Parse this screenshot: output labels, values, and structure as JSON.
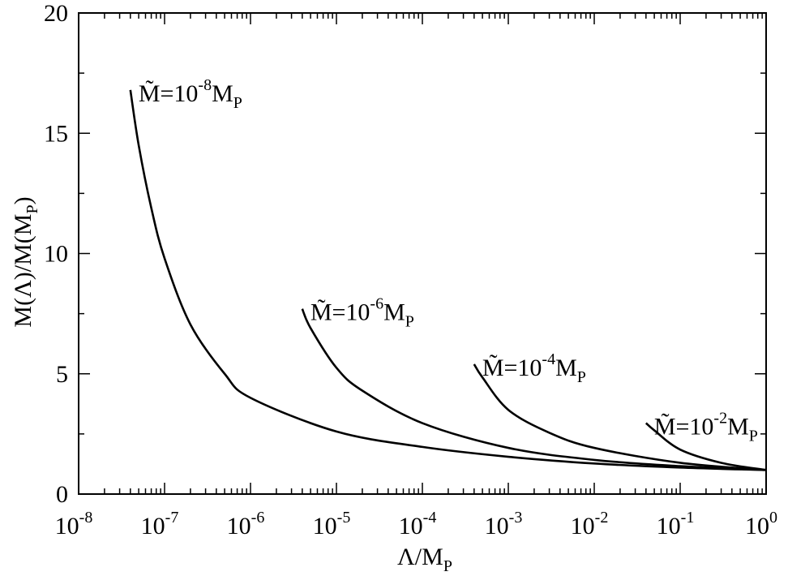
{
  "chart_data": {
    "type": "line",
    "xscale": "log",
    "xlabel": {
      "main": "Λ/M",
      "sub": "P"
    },
    "ylabel": {
      "main": "M(Λ)/M(M",
      "sub": "P",
      "tail": ")"
    },
    "xlim": [
      1e-08,
      1
    ],
    "ylim": [
      0,
      20
    ],
    "grid": false,
    "x_ticks": [
      {
        "base": "10",
        "exp": "-8"
      },
      {
        "base": "10",
        "exp": "-7"
      },
      {
        "base": "10",
        "exp": "-6"
      },
      {
        "base": "10",
        "exp": "-5"
      },
      {
        "base": "10",
        "exp": "-4"
      },
      {
        "base": "10",
        "exp": "-3"
      },
      {
        "base": "10",
        "exp": "-2"
      },
      {
        "base": "10",
        "exp": "-1"
      },
      {
        "base": "10",
        "exp": "0"
      }
    ],
    "y_ticks": [
      "0",
      "5",
      "10",
      "15",
      "20"
    ],
    "series": [
      {
        "label": {
          "pre": "M̃=10",
          "exp": "-8",
          "mid": "M",
          "sub": "P"
        },
        "points": [
          [
            4e-08,
            16.8
          ],
          [
            5e-08,
            14.5
          ],
          [
            7e-08,
            11.9
          ],
          [
            1e-07,
            9.8
          ],
          [
            2e-07,
            7.05
          ],
          [
            5e-07,
            5.0
          ],
          [
            1e-06,
            4.0
          ],
          [
            1e-05,
            2.6
          ],
          [
            0.0001,
            1.96
          ],
          [
            0.001,
            1.55
          ],
          [
            0.01,
            1.27
          ],
          [
            0.1,
            1.1
          ],
          [
            1,
            1.0
          ]
        ]
      },
      {
        "label": {
          "pre": "M̃=10",
          "exp": "-6",
          "mid": "M",
          "sub": "P"
        },
        "points": [
          [
            4e-06,
            7.7
          ],
          [
            5e-06,
            6.9
          ],
          [
            1e-05,
            5.25
          ],
          [
            2e-05,
            4.3
          ],
          [
            0.0001,
            2.95
          ],
          [
            0.001,
            1.92
          ],
          [
            0.01,
            1.42
          ],
          [
            0.1,
            1.16
          ],
          [
            1,
            1.0
          ]
        ]
      },
      {
        "label": {
          "pre": "M̃=10",
          "exp": "-4",
          "mid": "M",
          "sub": "P"
        },
        "points": [
          [
            0.0004,
            5.4
          ],
          [
            0.0005,
            4.85
          ],
          [
            0.001,
            3.5
          ],
          [
            0.003,
            2.55
          ],
          [
            0.01,
            1.92
          ],
          [
            0.1,
            1.3
          ],
          [
            1,
            1.0
          ]
        ]
      },
      {
        "label": {
          "pre": "M̃=10",
          "exp": "-2",
          "mid": "M",
          "sub": "P"
        },
        "points": [
          [
            0.04,
            2.95
          ],
          [
            0.05,
            2.65
          ],
          [
            0.1,
            1.85
          ],
          [
            0.3,
            1.3
          ],
          [
            1,
            1.0
          ]
        ]
      }
    ],
    "annotations": [
      {
        "series": 0,
        "x": 4e-08,
        "y": 16.8
      },
      {
        "series": 1,
        "x": 4e-06,
        "y": 7.7
      },
      {
        "series": 2,
        "x": 0.0004,
        "y": 5.4
      },
      {
        "series": 3,
        "x": 0.04,
        "y": 2.95
      }
    ]
  }
}
